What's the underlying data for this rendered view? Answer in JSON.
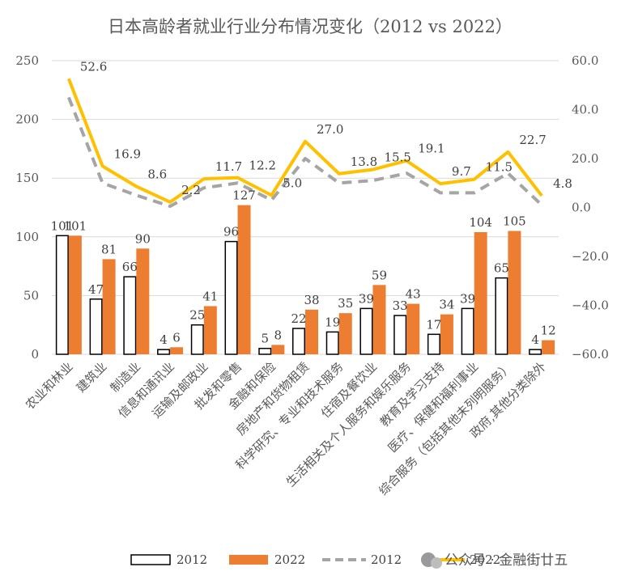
{
  "chart_data": {
    "type": "bar",
    "title": "日本高龄者就业行业分布情况变化（2012 vs 2022）",
    "categories": [
      "农业和林业",
      "建筑业",
      "制造业",
      "信息和通讯业",
      "运输及邮政业",
      "批发和零售",
      "金融和保险",
      "房地产和货物租赁",
      "科学研究、专业和技术服务",
      "住宿及餐饮业",
      "生活相关及个人服务和娱乐服务",
      "教育及学习支持",
      "医疗、保健和福利事业",
      "综合服务（包括其他未列明服务）",
      "政府,其他分类除外"
    ],
    "series": [
      {
        "name": "2012",
        "type": "bar",
        "axis": "left",
        "values": [
          101,
          47,
          66,
          4,
          25,
          96,
          5,
          22,
          19,
          39,
          33,
          17,
          39,
          65,
          4
        ],
        "labels": [
          "101",
          "47",
          "66",
          "4",
          "25",
          "96",
          "5",
          "22",
          "19",
          "39",
          "33",
          "17",
          "39",
          "65",
          "4"
        ]
      },
      {
        "name": "2022",
        "type": "bar",
        "axis": "left",
        "values": [
          101,
          81,
          90,
          6,
          41,
          127,
          8,
          38,
          35,
          59,
          43,
          34,
          104,
          105,
          12
        ],
        "labels": [
          "101",
          "81",
          "90",
          "6",
          "41",
          "127",
          "8",
          "38",
          "35",
          "59",
          "43",
          "34",
          "104",
          "105",
          "12"
        ]
      },
      {
        "name": "2012",
        "type": "line",
        "style": "dashed",
        "axis": "right",
        "values": [
          45,
          10,
          5,
          0.5,
          8,
          10,
          3,
          20,
          10,
          11,
          14,
          6,
          6,
          14,
          1
        ],
        "labels": []
      },
      {
        "name": "2022",
        "type": "line",
        "axis": "right",
        "values": [
          52.6,
          16.9,
          8.6,
          2.2,
          11.7,
          12.2,
          5.0,
          27.0,
          13.8,
          15.5,
          19.1,
          9.7,
          11.5,
          22.7,
          4.8
        ],
        "labels": [
          "52.6",
          "16.9",
          "8.6",
          "2.2",
          "11.7",
          "12.2",
          "5.0",
          "27.0",
          "13.8",
          "15.5",
          "19.1",
          "9.7",
          "11.5",
          "22.7",
          "4.8"
        ]
      }
    ],
    "left_axis": {
      "min": 0,
      "max": 250,
      "ticks": [
        "0",
        "50",
        "100",
        "150",
        "200",
        "250"
      ]
    },
    "right_axis": {
      "min": -60,
      "max": 60,
      "ticks": [
        "60.0",
        "40.0",
        "20.0",
        "0.0",
        "-20.0",
        "-40.0",
        "-60.0"
      ]
    },
    "grid": true,
    "legend": {
      "position": "bottom",
      "entries": [
        "2012",
        "2022",
        "2012",
        "2022"
      ]
    },
    "colors": {
      "bar_2012_fill": "#ffffff",
      "bar_2012_stroke": "#000000",
      "bar_2022": "#ed7d31",
      "line_2012": "#a5a5a5",
      "line_2022": "#ffc000",
      "grid": "#d9d9d9",
      "text": "#595959"
    }
  },
  "watermark": {
    "text": "公众号 · 金融街廿五"
  }
}
